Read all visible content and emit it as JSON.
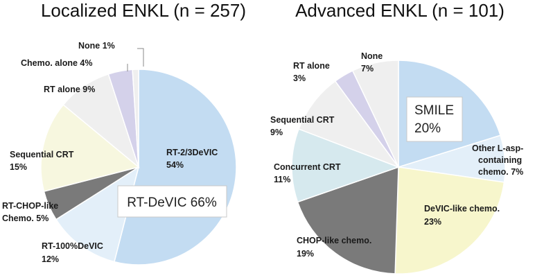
{
  "chart_data": [
    {
      "type": "pie",
      "title": "Localized ENKL (n = 257)",
      "slices": [
        {
          "label": "RT-2/3DeVIC",
          "pct_text": "54%",
          "value": 54,
          "color": "#c3dcf2"
        },
        {
          "label": "RT-100%DeVIC",
          "pct_text": "12%",
          "value": 12,
          "color": "#e3eff9"
        },
        {
          "label": "RT-CHOP-like Chemo.",
          "pct_text": "5%",
          "value": 5,
          "color": "#7a7a7a"
        },
        {
          "label": "Sequential CRT",
          "pct_text": "15%",
          "value": 15,
          "color": "#f7f7df"
        },
        {
          "label": "RT alone",
          "pct_text": "9%",
          "value": 9,
          "color": "#efefef"
        },
        {
          "label": "Chemo. alone",
          "pct_text": "4%",
          "value": 4,
          "color": "#d4d1ea"
        },
        {
          "label": "None",
          "pct_text": "1%",
          "value": 1,
          "color": "#efefef"
        }
      ],
      "annotation": "RT-DeVIC 66%"
    },
    {
      "type": "pie",
      "title": "Advanced ENKL (n = 101)",
      "slices": [
        {
          "label": "SMILE",
          "pct_text": "20%",
          "value": 20,
          "color": "#c3dcf2"
        },
        {
          "label": "Other L-asp-containing chemo.",
          "pct_text": "7%",
          "value": 7,
          "color": "#e3eff9"
        },
        {
          "label": "DeVIC-like chemo.",
          "pct_text": "23%",
          "value": 23,
          "color": "#f7f6cc"
        },
        {
          "label": "CHOP-like chemo.",
          "pct_text": "19%",
          "value": 19,
          "color": "#7a7a7a"
        },
        {
          "label": "Concurrent CRT",
          "pct_text": "11%",
          "value": 11,
          "color": "#d6e9ee"
        },
        {
          "label": "Sequential CRT",
          "pct_text": "9%",
          "value": 9,
          "color": "#efefef"
        },
        {
          "label": "RT alone",
          "pct_text": "3%",
          "value": 3,
          "color": "#d4d1ea"
        },
        {
          "label": "None",
          "pct_text": "7%",
          "value": 7,
          "color": "#efefef"
        }
      ]
    }
  ],
  "left": {
    "title": "Localized ENKL (n = 257)",
    "annotation": "RT-DeVIC 66%",
    "labels": {
      "rt23_name": "RT-2/3DeVIC",
      "rt23_pct": "54%",
      "rt100_name": "RT-100%DeVIC",
      "rt100_pct": "12%",
      "chop_line1": "RT-CHOP-like",
      "chop_line2": "Chemo. 5%",
      "seq_name": "Sequential CRT",
      "seq_pct": "15%",
      "rtalone": "RT alone 9%",
      "chemo": "Chemo. alone 4%",
      "none": "None 1%"
    }
  },
  "right": {
    "title": "Advanced ENKL (n = 101)",
    "smile_name": "SMILE",
    "smile_pct": "20%",
    "labels": {
      "lasp_l1": "Other L-asp-",
      "lasp_l2": "containing",
      "lasp_l3": "chemo. 7%",
      "devic_name": "DeVIC-like chemo.",
      "devic_pct": "23%",
      "chop_name": "CHOP-like chemo.",
      "chop_pct": "19%",
      "conc_name": "Concurrent CRT",
      "conc_pct": "11%",
      "seq_name": "Sequential CRT",
      "seq_pct": "9%",
      "rt_name": "RT alone",
      "rt_pct": "3%",
      "none_name": "None",
      "none_pct": "7%"
    }
  }
}
